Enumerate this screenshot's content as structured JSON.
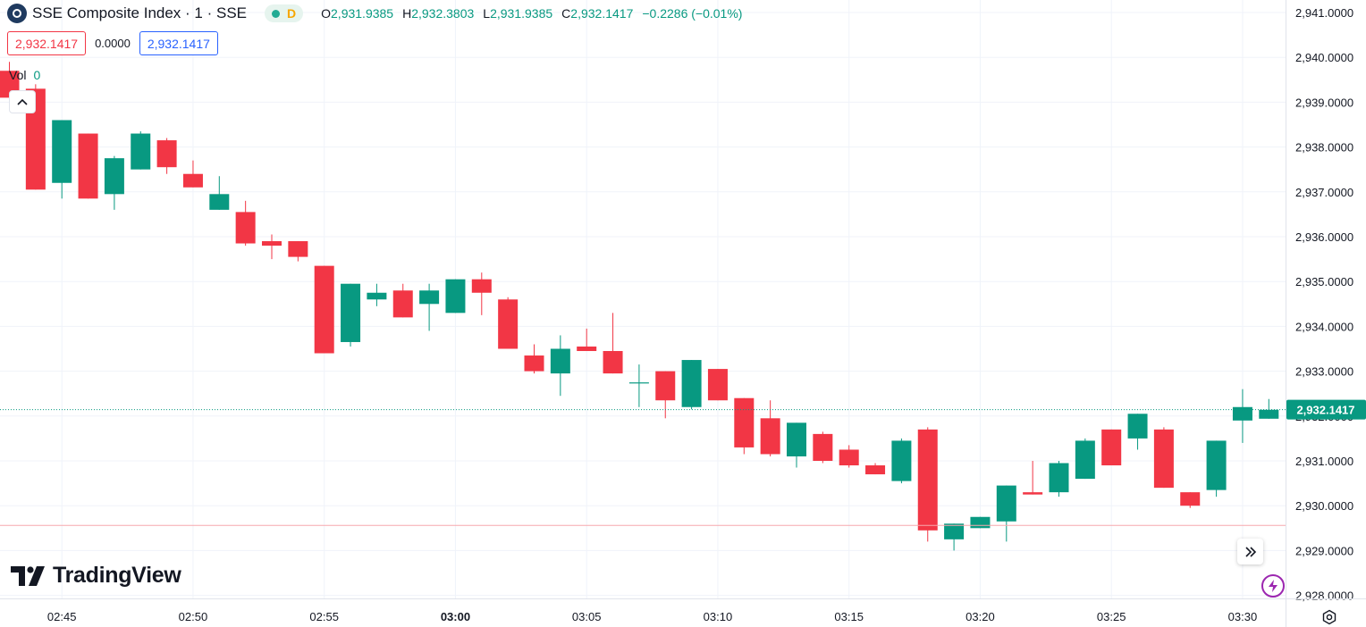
{
  "legend": {
    "symbol_title": "SSE Composite Index · 1 · SSE",
    "market_status": "D",
    "open_label": "O",
    "open": "2,931.9385",
    "high_label": "H",
    "high": "2,932.3803",
    "low_label": "L",
    "low": "2,931.9385",
    "close_label": "C",
    "close": "2,932.1417",
    "change": "−0.2286 (−0.01%)",
    "up_color": "#089981",
    "down_color": "#f23645"
  },
  "trade": {
    "sell_price": "2,932.1417",
    "spread": "0.0000",
    "buy_price": "2,932.1417"
  },
  "volume": {
    "label": "Vol",
    "value": "0"
  },
  "branding": {
    "logo_text": "TradingView"
  },
  "icons": {
    "symbol_logo": "sse-logo-icon",
    "collapse": "chevron-up-icon",
    "scroll_to_realtime": "double-chevron-right-icon",
    "bolt": "lightning-bolt-icon",
    "settings": "gear-icon"
  },
  "chart_data": {
    "type": "candlestick",
    "y_ticks": [
      "2,941.0000",
      "2,940.0000",
      "2,939.0000",
      "2,938.0000",
      "2,937.0000",
      "2,936.0000",
      "2,935.0000",
      "2,934.0000",
      "2,933.0000",
      "2,932.0000",
      "2,931.0000",
      "2,930.0000",
      "2,929.0000",
      "2,928.0000"
    ],
    "ylim": [
      2927.95,
      2941.25
    ],
    "x_ticks": [
      {
        "label": "02:45",
        "minute": 2
      },
      {
        "label": "02:50",
        "minute": 7
      },
      {
        "label": "02:55",
        "minute": 12
      },
      {
        "label": "03:00",
        "minute": 17,
        "bold": true
      },
      {
        "label": "03:05",
        "minute": 22
      },
      {
        "label": "03:10",
        "minute": 27
      },
      {
        "label": "03:15",
        "minute": 32
      },
      {
        "label": "03:20",
        "minute": 37
      },
      {
        "label": "03:25",
        "minute": 42
      },
      {
        "label": "03:30",
        "minute": 47
      }
    ],
    "last_price": 2932.1417,
    "last_price_label": "2,932.1417",
    "secondary_line": 2929.56,
    "grid": true,
    "candles": [
      {
        "o": 2939.7,
        "h": 2939.9,
        "l": 2939.0,
        "c": 2939.1
      },
      {
        "o": 2939.3,
        "h": 2939.4,
        "l": 2937.05,
        "c": 2937.05
      },
      {
        "o": 2937.2,
        "h": 2938.6,
        "l": 2936.85,
        "c": 2938.6
      },
      {
        "o": 2938.3,
        "h": 2938.3,
        "l": 2936.85,
        "c": 2936.85
      },
      {
        "o": 2936.95,
        "h": 2937.8,
        "l": 2936.6,
        "c": 2937.75
      },
      {
        "o": 2937.5,
        "h": 2938.35,
        "l": 2937.5,
        "c": 2938.3
      },
      {
        "o": 2938.15,
        "h": 2938.2,
        "l": 2937.4,
        "c": 2937.55
      },
      {
        "o": 2937.4,
        "h": 2937.7,
        "l": 2937.1,
        "c": 2937.1
      },
      {
        "o": 2936.6,
        "h": 2937.35,
        "l": 2936.6,
        "c": 2936.95
      },
      {
        "o": 2936.55,
        "h": 2936.8,
        "l": 2935.8,
        "c": 2935.85
      },
      {
        "o": 2935.9,
        "h": 2936.05,
        "l": 2935.5,
        "c": 2935.8
      },
      {
        "o": 2935.9,
        "h": 2935.9,
        "l": 2935.45,
        "c": 2935.55
      },
      {
        "o": 2935.35,
        "h": 2935.35,
        "l": 2933.4,
        "c": 2933.4
      },
      {
        "o": 2933.65,
        "h": 2934.95,
        "l": 2933.55,
        "c": 2934.95
      },
      {
        "o": 2934.6,
        "h": 2934.95,
        "l": 2934.45,
        "c": 2934.75
      },
      {
        "o": 2934.8,
        "h": 2934.95,
        "l": 2934.2,
        "c": 2934.2
      },
      {
        "o": 2934.5,
        "h": 2934.95,
        "l": 2933.9,
        "c": 2934.8
      },
      {
        "o": 2934.3,
        "h": 2935.05,
        "l": 2934.3,
        "c": 2935.05
      },
      {
        "o": 2935.05,
        "h": 2935.2,
        "l": 2934.25,
        "c": 2934.75
      },
      {
        "o": 2934.6,
        "h": 2934.65,
        "l": 2933.5,
        "c": 2933.5
      },
      {
        "o": 2933.35,
        "h": 2933.6,
        "l": 2932.95,
        "c": 2933.0
      },
      {
        "o": 2932.95,
        "h": 2933.8,
        "l": 2932.45,
        "c": 2933.5
      },
      {
        "o": 2933.55,
        "h": 2933.95,
        "l": 2933.45,
        "c": 2933.45
      },
      {
        "o": 2933.45,
        "h": 2934.3,
        "l": 2932.95,
        "c": 2932.95
      },
      {
        "o": 2932.75,
        "h": 2933.15,
        "l": 2932.2,
        "c": 2932.75
      },
      {
        "o": 2933.0,
        "h": 2933.0,
        "l": 2931.95,
        "c": 2932.35
      },
      {
        "o": 2932.2,
        "h": 2933.25,
        "l": 2932.15,
        "c": 2933.25
      },
      {
        "o": 2933.05,
        "h": 2933.05,
        "l": 2932.35,
        "c": 2932.35
      },
      {
        "o": 2932.4,
        "h": 2932.4,
        "l": 2931.15,
        "c": 2931.3
      },
      {
        "o": 2931.95,
        "h": 2932.35,
        "l": 2931.1,
        "c": 2931.15
      },
      {
        "o": 2931.1,
        "h": 2931.85,
        "l": 2930.85,
        "c": 2931.85
      },
      {
        "o": 2931.6,
        "h": 2931.65,
        "l": 2930.95,
        "c": 2931.0
      },
      {
        "o": 2931.25,
        "h": 2931.35,
        "l": 2930.85,
        "c": 2930.9
      },
      {
        "o": 2930.9,
        "h": 2930.95,
        "l": 2930.7,
        "c": 2930.7
      },
      {
        "o": 2930.55,
        "h": 2931.5,
        "l": 2930.5,
        "c": 2931.45
      },
      {
        "o": 2931.7,
        "h": 2931.75,
        "l": 2929.2,
        "c": 2929.45
      },
      {
        "o": 2929.25,
        "h": 2929.6,
        "l": 2929.0,
        "c": 2929.6
      },
      {
        "o": 2929.5,
        "h": 2929.75,
        "l": 2929.5,
        "c": 2929.75
      },
      {
        "o": 2929.65,
        "h": 2930.45,
        "l": 2929.2,
        "c": 2930.45
      },
      {
        "o": 2930.3,
        "h": 2931.0,
        "l": 2930.25,
        "c": 2930.25
      },
      {
        "o": 2930.3,
        "h": 2931.0,
        "l": 2930.2,
        "c": 2930.95
      },
      {
        "o": 2930.6,
        "h": 2931.5,
        "l": 2930.6,
        "c": 2931.45
      },
      {
        "o": 2931.7,
        "h": 2931.7,
        "l": 2930.9,
        "c": 2930.9
      },
      {
        "o": 2931.5,
        "h": 2932.05,
        "l": 2931.25,
        "c": 2932.05
      },
      {
        "o": 2931.7,
        "h": 2931.75,
        "l": 2930.4,
        "c": 2930.4
      },
      {
        "o": 2930.3,
        "h": 2930.3,
        "l": 2929.95,
        "c": 2930.0
      },
      {
        "o": 2930.35,
        "h": 2931.45,
        "l": 2930.2,
        "c": 2931.45
      },
      {
        "o": 2931.9,
        "h": 2932.6,
        "l": 2931.4,
        "c": 2932.2
      },
      {
        "o": 2931.94,
        "h": 2932.38,
        "l": 2931.94,
        "c": 2932.14
      }
    ]
  }
}
